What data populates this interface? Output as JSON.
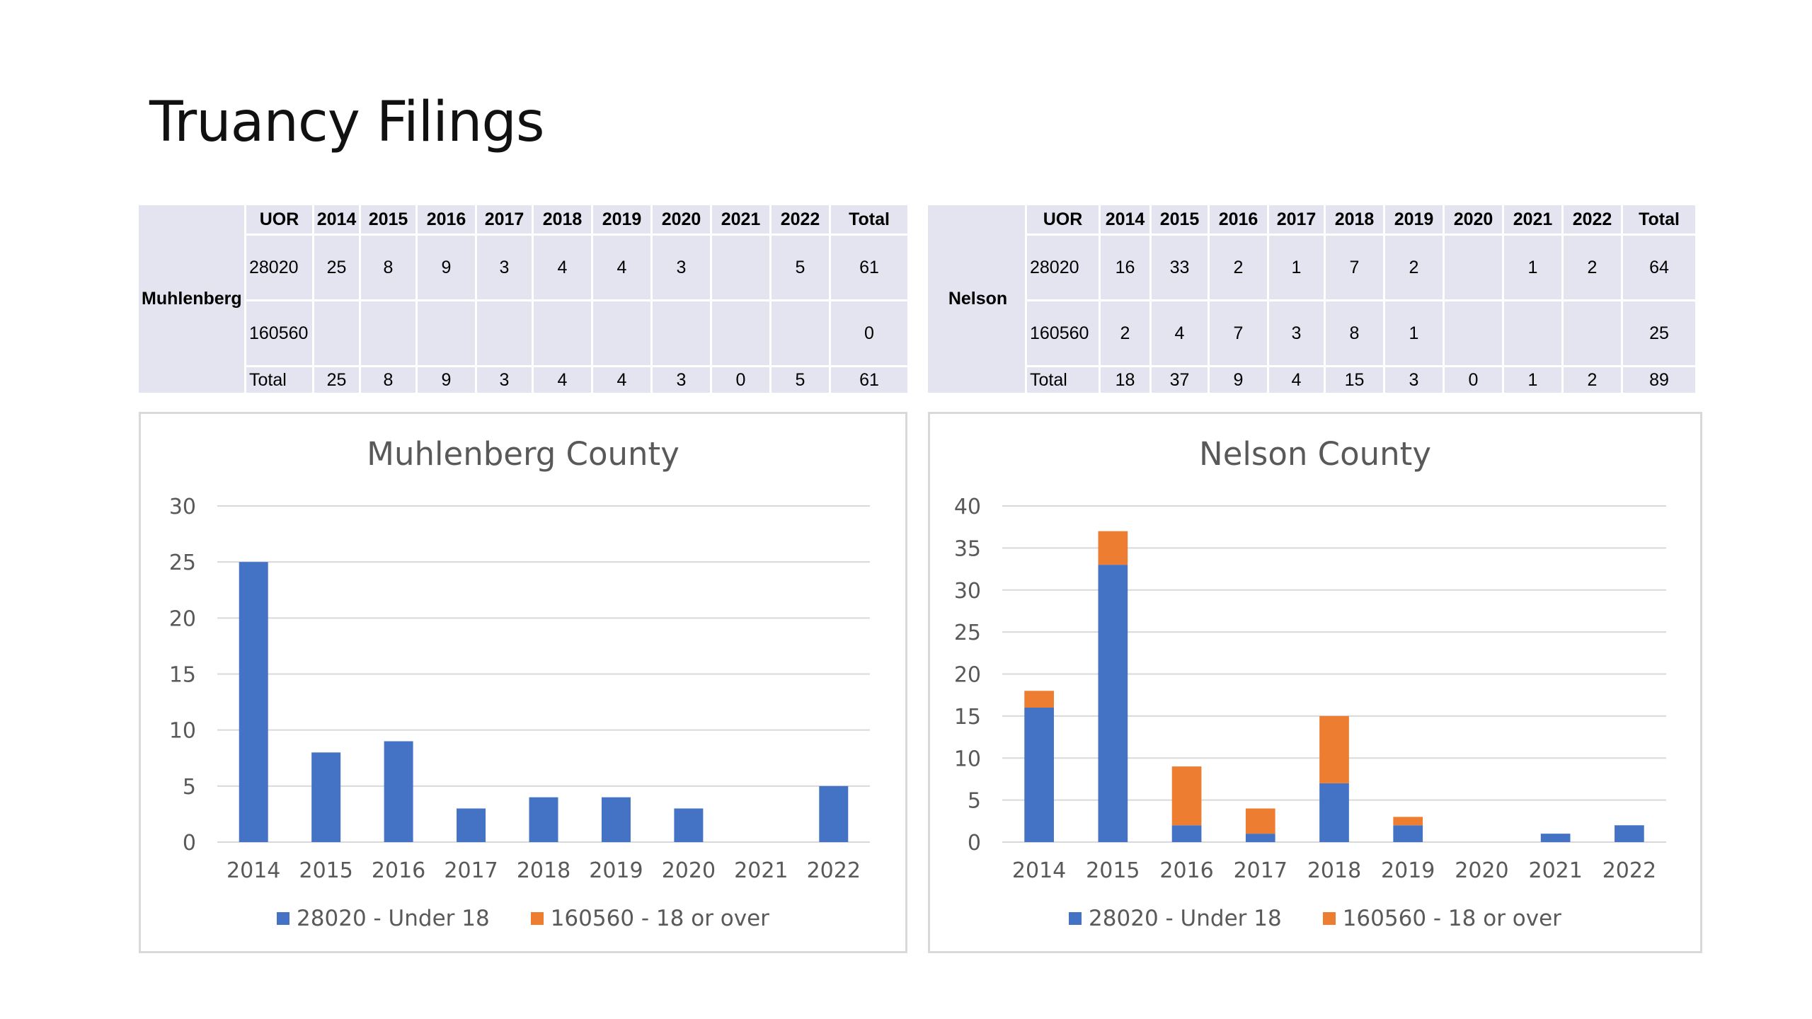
{
  "slide": {
    "title": "Truancy Filings"
  },
  "colors": {
    "under18": "#4472c4",
    "over18": "#ed7d31",
    "table_bg": "#e3e4ef",
    "grid": "#d9d9d9",
    "axis_text": "#595959"
  },
  "tables": {
    "muhlenberg": {
      "county": "Muhlenberg",
      "header": [
        "UOR",
        "2014",
        "2015",
        "2016",
        "2017",
        "2018",
        "2019",
        "2020",
        "2021",
        "2022",
        "Total"
      ],
      "rows": [
        [
          "28020",
          "25",
          "8",
          "9",
          "3",
          "4",
          "4",
          "3",
          "",
          "5",
          "61"
        ],
        [
          "160560",
          "",
          "",
          "",
          "",
          "",
          "",
          "",
          "",
          "",
          "0"
        ],
        [
          "Total",
          "25",
          "8",
          "9",
          "3",
          "4",
          "4",
          "3",
          "0",
          "5",
          "61"
        ]
      ]
    },
    "nelson": {
      "county": "Nelson",
      "header": [
        "UOR",
        "2014",
        "2015",
        "2016",
        "2017",
        "2018",
        "2019",
        "2020",
        "2021",
        "2022",
        "Total"
      ],
      "rows": [
        [
          "28020",
          "16",
          "33",
          "2",
          "1",
          "7",
          "2",
          "",
          "1",
          "2",
          "64"
        ],
        [
          "160560",
          "2",
          "4",
          "7",
          "3",
          "8",
          "1",
          "",
          "",
          "",
          "25"
        ],
        [
          "Total",
          "18",
          "37",
          "9",
          "4",
          "15",
          "3",
          "0",
          "1",
          "2",
          "89"
        ]
      ]
    }
  },
  "legend": {
    "under18": "28020 - Under 18",
    "over18": "160560 - 18 or over"
  },
  "chart_data": [
    {
      "type": "bar",
      "stacked": true,
      "title": "Muhlenberg County",
      "categories": [
        "2014",
        "2015",
        "2016",
        "2017",
        "2018",
        "2019",
        "2020",
        "2021",
        "2022"
      ],
      "series": [
        {
          "name": "28020 - Under 18",
          "values": [
            25,
            8,
            9,
            3,
            4,
            4,
            3,
            0,
            5
          ]
        },
        {
          "name": "160560 - 18 or over",
          "values": [
            0,
            0,
            0,
            0,
            0,
            0,
            0,
            0,
            0
          ]
        }
      ],
      "ylim": [
        0,
        30
      ],
      "yticks": [
        0,
        5,
        10,
        15,
        20,
        25,
        30
      ],
      "grid": true,
      "legend_position": "bottom"
    },
    {
      "type": "bar",
      "stacked": true,
      "title": "Nelson County",
      "categories": [
        "2014",
        "2015",
        "2016",
        "2017",
        "2018",
        "2019",
        "2020",
        "2021",
        "2022"
      ],
      "series": [
        {
          "name": "28020 - Under 18",
          "values": [
            16,
            33,
            2,
            1,
            7,
            2,
            0,
            1,
            2
          ]
        },
        {
          "name": "160560 - 18 or over",
          "values": [
            2,
            4,
            7,
            3,
            8,
            1,
            0,
            0,
            0
          ]
        }
      ],
      "ylim": [
        0,
        40
      ],
      "yticks": [
        0,
        5,
        10,
        15,
        20,
        25,
        30,
        35,
        40
      ],
      "grid": true,
      "legend_position": "bottom"
    }
  ]
}
